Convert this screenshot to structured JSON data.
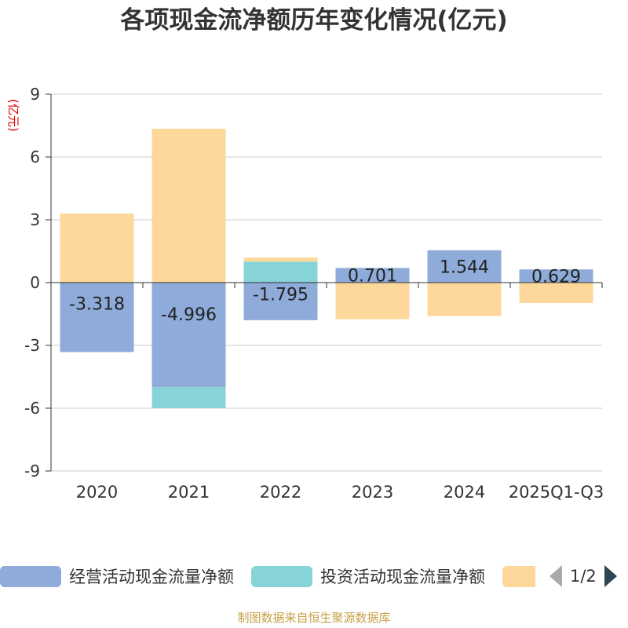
{
  "chart_data": {
    "type": "bar",
    "stacked": true,
    "title": "各项现金流净额历年变化情况(亿元)",
    "ylabel": "(亿元)",
    "ylim": [
      -9,
      9
    ],
    "yticks": [
      9,
      6,
      3,
      0,
      -3,
      -6,
      -9
    ],
    "categories": [
      "2020",
      "2021",
      "2022",
      "2023",
      "2024",
      "2025Q1-Q3"
    ],
    "series": [
      {
        "name": "经营活动现金流量净额",
        "color": "#8eabd9",
        "values": [
          -3.318,
          -4.996,
          -1.795,
          0.701,
          1.544,
          0.629
        ],
        "labels": [
          "-3.318",
          "-4.996",
          "-1.795",
          "0.701",
          "1.544",
          "0.629"
        ]
      },
      {
        "name": "投资活动现金流量净额",
        "color": "#86d4d8",
        "values": [
          0,
          -1.0,
          1.0,
          0,
          0,
          0
        ]
      },
      {
        "name": "",
        "color": "#fdd89a",
        "values": [
          3.3,
          7.35,
          0.2,
          -1.75,
          -1.6,
          -0.97
        ]
      }
    ]
  },
  "legend": {
    "items": [
      {
        "label": "经营活动现金流量净额",
        "color": "#8eabd9"
      },
      {
        "label": "投资活动现金流量净额",
        "color": "#86d4d8"
      },
      {
        "label": "",
        "color": "#fdd89a"
      }
    ],
    "page": "1/2"
  },
  "source": "制图数据来自恒生聚源数据库"
}
